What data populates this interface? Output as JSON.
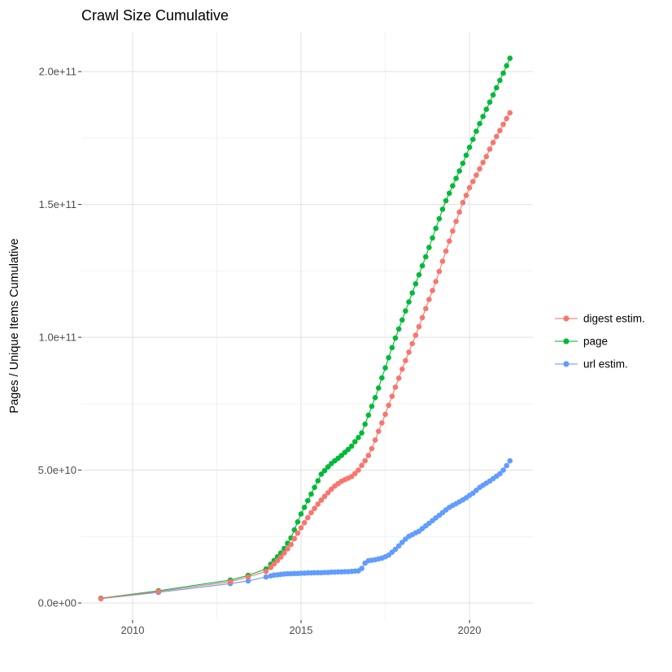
{
  "chart_data": {
    "type": "scatter",
    "title": "Crawl Size Cumulative",
    "ylabel": "Pages / Unique Items Cumulative",
    "xlabel": "",
    "legend_position": "right",
    "background_color": "#FFFFFF",
    "grid": {
      "major_color": "#E3E3E3",
      "minor_color": "#F0F0F0",
      "tick_color": "#333333"
    },
    "x_axis": {
      "range": [
        2008.48,
        2021.88
      ],
      "major_breaks": [
        2010,
        2015,
        2020
      ],
      "minor_breaks": [
        2012.5,
        2017.5
      ],
      "tick_labels": [
        "2010",
        "2015",
        "2020"
      ]
    },
    "y_axis": {
      "value_unit": 1000000000,
      "range": [
        -6.4,
        214.7
      ],
      "major_breaks": [
        0,
        50,
        100,
        150,
        200
      ],
      "minor_breaks": [
        25,
        75,
        125,
        175
      ],
      "tick_labels": [
        "0.0e+00",
        "5.0e+10",
        "1.0e+11",
        "1.5e+11",
        "2.0e+11"
      ]
    },
    "draw_order": [
      2,
      1,
      0
    ],
    "series": [
      {
        "name": "digest estim.",
        "color": "#F8766D",
        "points": [
          [
            2009.06,
            1.7
          ],
          [
            2010.77,
            4.3
          ],
          [
            2012.9,
            8.0
          ],
          [
            2013.43,
            9.8
          ],
          [
            2013.96,
            11.9
          ],
          [
            2014.1,
            13.4
          ],
          [
            2014.2,
            14.7
          ],
          [
            2014.3,
            16.0
          ],
          [
            2014.4,
            17.3
          ],
          [
            2014.5,
            18.8
          ],
          [
            2014.6,
            20.4
          ],
          [
            2014.7,
            22.0
          ],
          [
            2014.8,
            24.2
          ],
          [
            2014.9,
            26.3
          ],
          [
            2015.0,
            28.3
          ],
          [
            2015.1,
            30.2
          ],
          [
            2015.2,
            32.1
          ],
          [
            2015.3,
            34.0
          ],
          [
            2015.4,
            35.6
          ],
          [
            2015.5,
            37.2
          ],
          [
            2015.6,
            38.7
          ],
          [
            2015.7,
            40.1
          ],
          [
            2015.8,
            41.5
          ],
          [
            2015.9,
            42.8
          ],
          [
            2016.0,
            44.0
          ],
          [
            2016.1,
            44.9
          ],
          [
            2016.2,
            45.8
          ],
          [
            2016.3,
            46.4
          ],
          [
            2016.4,
            47.0
          ],
          [
            2016.5,
            47.6
          ],
          [
            2016.6,
            48.7
          ],
          [
            2016.7,
            50.0
          ],
          [
            2016.8,
            51.8
          ],
          [
            2016.9,
            53.5
          ],
          [
            2017.0,
            55.5
          ],
          [
            2017.1,
            58.1
          ],
          [
            2017.2,
            61.3
          ],
          [
            2017.3,
            64.6
          ],
          [
            2017.4,
            67.8
          ],
          [
            2017.5,
            71.0
          ],
          [
            2017.6,
            74.4
          ],
          [
            2017.7,
            77.8
          ],
          [
            2017.8,
            81.2
          ],
          [
            2017.9,
            84.6
          ],
          [
            2018.0,
            88.0
          ],
          [
            2018.1,
            91.2
          ],
          [
            2018.2,
            94.4
          ],
          [
            2018.3,
            97.6
          ],
          [
            2018.4,
            100.8
          ],
          [
            2018.5,
            104.0
          ],
          [
            2018.6,
            107.4
          ],
          [
            2018.7,
            110.8
          ],
          [
            2018.8,
            114.2
          ],
          [
            2018.9,
            117.6
          ],
          [
            2019.0,
            121.0
          ],
          [
            2019.1,
            124.8
          ],
          [
            2019.2,
            128.6
          ],
          [
            2019.3,
            132.4
          ],
          [
            2019.4,
            136.2
          ],
          [
            2019.5,
            140.0
          ],
          [
            2019.6,
            143.6
          ],
          [
            2019.7,
            147.1
          ],
          [
            2019.8,
            150.7
          ],
          [
            2019.9,
            153.4
          ],
          [
            2020.0,
            156.3
          ],
          [
            2020.1,
            158.6
          ],
          [
            2020.2,
            161.0
          ],
          [
            2020.3,
            163.4
          ],
          [
            2020.4,
            165.8
          ],
          [
            2020.5,
            168.0
          ],
          [
            2020.6,
            170.8
          ],
          [
            2020.7,
            173.3
          ],
          [
            2020.8,
            175.6
          ],
          [
            2020.9,
            177.8
          ],
          [
            2021.0,
            180.1
          ],
          [
            2021.1,
            182.3
          ],
          [
            2021.2,
            184.5
          ]
        ]
      },
      {
        "name": "page",
        "color": "#00BA38",
        "points": [
          [
            2009.06,
            1.8
          ],
          [
            2010.77,
            4.6
          ],
          [
            2012.9,
            8.6
          ],
          [
            2013.43,
            10.4
          ],
          [
            2013.96,
            12.8
          ],
          [
            2014.1,
            14.6
          ],
          [
            2014.2,
            16.0
          ],
          [
            2014.3,
            17.4
          ],
          [
            2014.4,
            18.8
          ],
          [
            2014.5,
            20.5
          ],
          [
            2014.6,
            22.5
          ],
          [
            2014.7,
            24.5
          ],
          [
            2014.8,
            27.5
          ],
          [
            2014.9,
            30.5
          ],
          [
            2015.0,
            33.5
          ],
          [
            2015.1,
            36.0
          ],
          [
            2015.2,
            38.5
          ],
          [
            2015.3,
            41.0
          ],
          [
            2015.4,
            43.5
          ],
          [
            2015.5,
            46.0
          ],
          [
            2015.6,
            48.5
          ],
          [
            2015.7,
            49.8
          ],
          [
            2015.8,
            51.2
          ],
          [
            2015.9,
            52.5
          ],
          [
            2016.0,
            53.5
          ],
          [
            2016.1,
            54.5
          ],
          [
            2016.2,
            55.5
          ],
          [
            2016.3,
            56.7
          ],
          [
            2016.4,
            57.8
          ],
          [
            2016.5,
            59.0
          ],
          [
            2016.6,
            60.7
          ],
          [
            2016.7,
            62.3
          ],
          [
            2016.8,
            64.0
          ],
          [
            2016.9,
            67.3
          ],
          [
            2017.0,
            70.7
          ],
          [
            2017.1,
            74.0
          ],
          [
            2017.2,
            77.3
          ],
          [
            2017.3,
            80.9
          ],
          [
            2017.4,
            84.7
          ],
          [
            2017.5,
            88.5
          ],
          [
            2017.6,
            92.3
          ],
          [
            2017.7,
            96.1
          ],
          [
            2017.8,
            99.7
          ],
          [
            2017.9,
            103.1
          ],
          [
            2018.0,
            106.5
          ],
          [
            2018.1,
            109.9
          ],
          [
            2018.2,
            113.3
          ],
          [
            2018.3,
            116.7
          ],
          [
            2018.4,
            120.1
          ],
          [
            2018.5,
            123.5
          ],
          [
            2018.6,
            126.9
          ],
          [
            2018.7,
            130.3
          ],
          [
            2018.8,
            133.8
          ],
          [
            2018.9,
            137.4
          ],
          [
            2019.0,
            141.0
          ],
          [
            2019.1,
            144.6
          ],
          [
            2019.2,
            148.2
          ],
          [
            2019.3,
            151.4
          ],
          [
            2019.4,
            154.2
          ],
          [
            2019.5,
            157.0
          ],
          [
            2019.6,
            159.8
          ],
          [
            2019.7,
            162.6
          ],
          [
            2019.8,
            165.5
          ],
          [
            2019.9,
            168.5
          ],
          [
            2020.0,
            171.5
          ],
          [
            2020.1,
            174.5
          ],
          [
            2020.2,
            177.5
          ],
          [
            2020.3,
            180.4
          ],
          [
            2020.4,
            183.1
          ],
          [
            2020.5,
            185.8
          ],
          [
            2020.6,
            188.5
          ],
          [
            2020.7,
            191.2
          ],
          [
            2020.8,
            193.9
          ],
          [
            2020.9,
            196.7
          ],
          [
            2021.0,
            199.4
          ],
          [
            2021.1,
            202.2
          ],
          [
            2021.2,
            205.0
          ]
        ]
      },
      {
        "name": "url estim.",
        "color": "#619CFF",
        "points": [
          [
            2009.06,
            1.6
          ],
          [
            2010.77,
            4.0
          ],
          [
            2012.9,
            7.3
          ],
          [
            2013.43,
            8.3
          ],
          [
            2013.96,
            9.8
          ],
          [
            2014.1,
            10.2
          ],
          [
            2014.2,
            10.5
          ],
          [
            2014.3,
            10.6
          ],
          [
            2014.4,
            10.8
          ],
          [
            2014.5,
            10.9
          ],
          [
            2014.6,
            11.0
          ],
          [
            2014.7,
            11.0
          ],
          [
            2014.8,
            11.1
          ],
          [
            2014.9,
            11.1
          ],
          [
            2015.0,
            11.2
          ],
          [
            2015.1,
            11.2
          ],
          [
            2015.2,
            11.3
          ],
          [
            2015.3,
            11.3
          ],
          [
            2015.4,
            11.4
          ],
          [
            2015.5,
            11.4
          ],
          [
            2015.6,
            11.4
          ],
          [
            2015.7,
            11.5
          ],
          [
            2015.8,
            11.5
          ],
          [
            2015.9,
            11.6
          ],
          [
            2016.0,
            11.6
          ],
          [
            2016.1,
            11.7
          ],
          [
            2016.2,
            11.7
          ],
          [
            2016.3,
            11.8
          ],
          [
            2016.4,
            11.8
          ],
          [
            2016.5,
            11.9
          ],
          [
            2016.6,
            12.0
          ],
          [
            2016.7,
            12.1
          ],
          [
            2016.8,
            13.0
          ],
          [
            2016.9,
            15.0
          ],
          [
            2017.0,
            15.9
          ],
          [
            2017.1,
            16.1
          ],
          [
            2017.2,
            16.3
          ],
          [
            2017.3,
            16.6
          ],
          [
            2017.4,
            16.9
          ],
          [
            2017.5,
            17.4
          ],
          [
            2017.6,
            18.0
          ],
          [
            2017.7,
            19.1
          ],
          [
            2017.8,
            20.2
          ],
          [
            2017.9,
            21.5
          ],
          [
            2018.0,
            22.8
          ],
          [
            2018.1,
            24.0
          ],
          [
            2018.2,
            25.1
          ],
          [
            2018.3,
            25.7
          ],
          [
            2018.4,
            26.4
          ],
          [
            2018.5,
            27.0
          ],
          [
            2018.6,
            28.0
          ],
          [
            2018.7,
            29.0
          ],
          [
            2018.8,
            30.0
          ],
          [
            2018.9,
            31.0
          ],
          [
            2019.0,
            32.0
          ],
          [
            2019.1,
            33.0
          ],
          [
            2019.2,
            34.0
          ],
          [
            2019.3,
            35.0
          ],
          [
            2019.4,
            36.0
          ],
          [
            2019.5,
            36.7
          ],
          [
            2019.6,
            37.4
          ],
          [
            2019.7,
            38.1
          ],
          [
            2019.8,
            38.8
          ],
          [
            2019.9,
            39.6
          ],
          [
            2020.0,
            40.5
          ],
          [
            2020.1,
            41.3
          ],
          [
            2020.2,
            42.4
          ],
          [
            2020.3,
            43.5
          ],
          [
            2020.4,
            44.3
          ],
          [
            2020.5,
            45.1
          ],
          [
            2020.6,
            45.9
          ],
          [
            2020.7,
            46.8
          ],
          [
            2020.8,
            47.7
          ],
          [
            2020.9,
            48.6
          ],
          [
            2021.0,
            50.0
          ],
          [
            2021.1,
            51.7
          ],
          [
            2021.2,
            53.5
          ]
        ]
      }
    ]
  }
}
